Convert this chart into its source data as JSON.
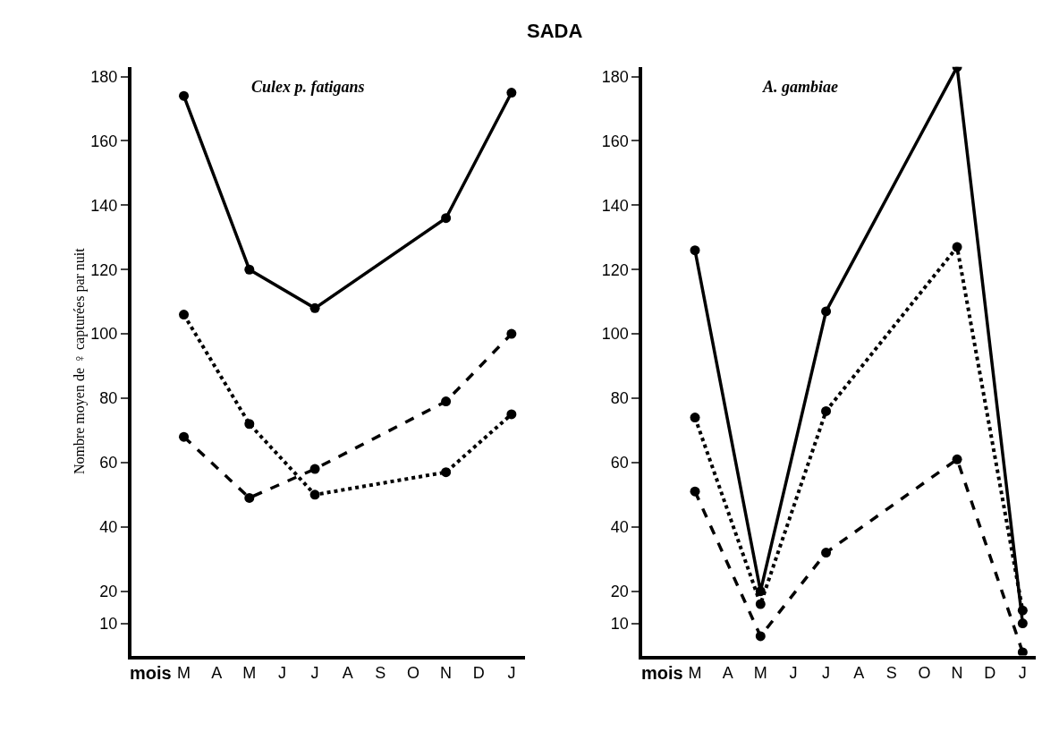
{
  "chart_data": [
    {
      "type": "line",
      "title": "SADA",
      "subtitle": "Culex p. fatigans",
      "xlabel": "mois",
      "ylabel": "Nombre moyen de ♀ capturées par nuit",
      "categories": [
        "M",
        "A",
        "M",
        "J",
        "J",
        "A",
        "S",
        "O",
        "N",
        "D",
        "J"
      ],
      "ylim": [
        0,
        183
      ],
      "yticks": [
        10,
        20,
        40,
        60,
        80,
        100,
        120,
        140,
        160,
        180
      ],
      "marker": "circle",
      "series": [
        {
          "color": "#000000",
          "line_style": "solid",
          "values": [
            174,
            null,
            120,
            null,
            108,
            null,
            null,
            null,
            136,
            null,
            175
          ]
        },
        {
          "color": "#000000",
          "line_style": "dashed",
          "values": [
            68,
            null,
            49,
            null,
            58,
            null,
            null,
            null,
            79,
            null,
            100
          ]
        },
        {
          "color": "#000000",
          "line_style": "dotted",
          "values": [
            106,
            null,
            72,
            null,
            50,
            null,
            null,
            null,
            57,
            null,
            75
          ]
        }
      ]
    },
    {
      "type": "line",
      "subtitle": "A. gambiae",
      "xlabel": "mois",
      "categories": [
        "M",
        "A",
        "M",
        "J",
        "J",
        "A",
        "S",
        "O",
        "N",
        "D",
        "J"
      ],
      "ylim": [
        0,
        183
      ],
      "yticks": [
        10,
        20,
        40,
        60,
        80,
        100,
        120,
        140,
        160,
        180
      ],
      "marker": "circle",
      "series": [
        {
          "color": "#000000",
          "line_style": "solid",
          "values": [
            126,
            null,
            20,
            null,
            107,
            null,
            null,
            null,
            183,
            null,
            10
          ]
        },
        {
          "color": "#000000",
          "line_style": "dashed",
          "values": [
            51,
            null,
            6,
            null,
            32,
            null,
            null,
            null,
            61,
            null,
            1
          ]
        },
        {
          "color": "#000000",
          "line_style": "dotted",
          "values": [
            74,
            null,
            16,
            null,
            76,
            null,
            null,
            null,
            127,
            null,
            14
          ]
        }
      ]
    }
  ]
}
